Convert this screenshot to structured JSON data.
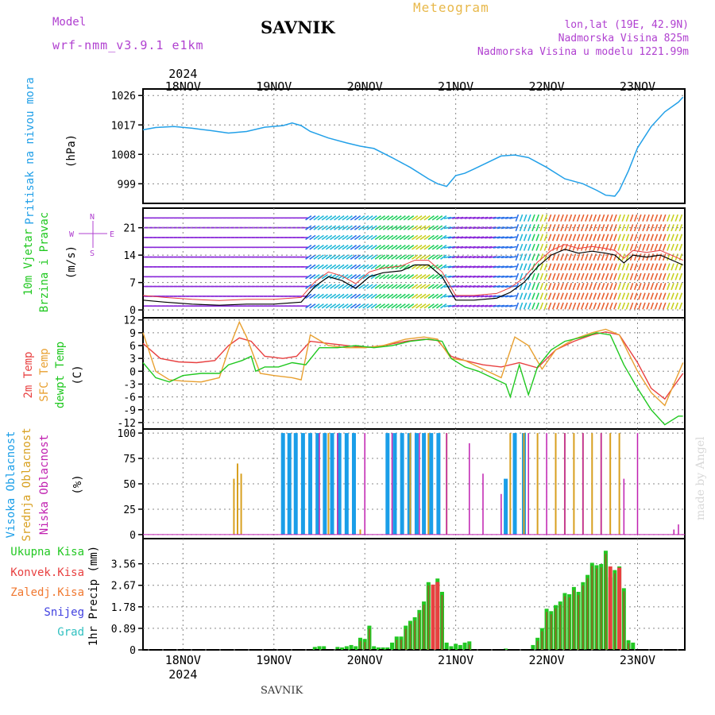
{
  "header": {
    "model_label": "Model",
    "model_value": "wrf-nmm_v3.9.1 e1km",
    "station": "SAVNIK",
    "meteogram": "Meteogram",
    "lonlat": "lon,lat (19E, 42.9N)",
    "altitude": "Nadmorska Visina 825m",
    "model_altitude": "Nadmorska Visina u modelu 1221.99m",
    "footer_station": "SAVNIK",
    "credit": "made by Angel"
  },
  "colors": {
    "pressure": "#22a0e8",
    "temp2m": "#e84040",
    "sfc_temp": "#e8a030",
    "dewpoint": "#20c820",
    "high_cloud": "#1a9ee8",
    "mid_cloud": "#d8a020",
    "low_cloud": "#c020b0",
    "total_precip": "#22c822",
    "conv_precip": "#e84040",
    "freezing_precip": "#f07830",
    "snow": "#4040e0",
    "hail": "#30c0c0",
    "label_purple": "#b040d0"
  },
  "chart_data": [
    {
      "type": "line",
      "panel": "pressure",
      "ylabel_side": "Pritisak na nivou mora",
      "unit": "(hPa)",
      "yticks": [
        999,
        1008,
        1017,
        1026
      ],
      "ylim": [
        993,
        1028
      ],
      "time_labels_top": [
        "18NOV",
        "19NOV",
        "20NOV",
        "21NOV",
        "22NOV",
        "23NOV"
      ],
      "year_label": "2024",
      "x": [
        17.56,
        17.7,
        17.9,
        18.1,
        18.3,
        18.5,
        18.7,
        18.9,
        19.1,
        19.2,
        19.3,
        19.4,
        19.6,
        19.8,
        19.95,
        20.1,
        20.3,
        20.5,
        20.7,
        20.8,
        20.9,
        21.0,
        21.1,
        21.2,
        21.35,
        21.5,
        21.65,
        21.8,
        22.0,
        22.2,
        22.4,
        22.55,
        22.65,
        22.75,
        22.8,
        22.9,
        23.0,
        23.15,
        23.3,
        23.45,
        23.5
      ],
      "y": [
        1015.5,
        1016.2,
        1016.5,
        1016.0,
        1015.3,
        1014.5,
        1015.0,
        1016.3,
        1016.8,
        1017.6,
        1016.8,
        1015.0,
        1013.0,
        1011.5,
        1010.5,
        1009.8,
        1007.0,
        1004.0,
        1000.5,
        999.0,
        998.2,
        1001.5,
        1002.2,
        1003.5,
        1005.5,
        1007.5,
        1007.8,
        1007.0,
        1004.0,
        1000.5,
        999.0,
        997.0,
        995.5,
        995.2,
        997.0,
        1003.0,
        1010.0,
        1016.5,
        1021.0,
        1024.0,
        1025.5
      ]
    },
    {
      "type": "line",
      "panel": "wind",
      "ylabel_side": [
        "10m Vjetar",
        "Brzina i Pravac"
      ],
      "unit": "(m/s)",
      "compass": {
        "n": "N",
        "s": "S",
        "e": "E",
        "w": "W"
      },
      "yticks": [
        0,
        7,
        14,
        21
      ],
      "ylim": [
        -2,
        26
      ],
      "x": [
        17.56,
        17.8,
        18.1,
        18.4,
        18.7,
        19.0,
        19.3,
        19.45,
        19.6,
        19.75,
        19.9,
        20.05,
        20.2,
        20.4,
        20.55,
        20.7,
        20.85,
        21.0,
        21.2,
        21.45,
        21.6,
        21.75,
        21.9,
        22.05,
        22.2,
        22.35,
        22.5,
        22.65,
        22.75,
        22.85,
        22.95,
        23.1,
        23.25,
        23.4,
        23.5
      ],
      "y": [
        2.5,
        2.0,
        1.5,
        1.2,
        1.5,
        1.5,
        2.0,
        6.0,
        8.5,
        7.5,
        5.5,
        8.5,
        9.5,
        10.0,
        11.5,
        11.5,
        8.5,
        2.5,
        2.5,
        3.0,
        4.5,
        7.0,
        11.0,
        14.0,
        15.5,
        14.5,
        15.0,
        14.5,
        14.0,
        12.0,
        14.0,
        13.5,
        14.0,
        12.5,
        11.5
      ]
    },
    {
      "type": "line",
      "panel": "temperature",
      "ylabel_side": [
        "2m Temp",
        "SFC Temp",
        "dewpt Temp"
      ],
      "unit": "(C)",
      "yticks": [
        -12,
        -9,
        -6,
        -3,
        0,
        3,
        6,
        9,
        12
      ],
      "ylim": [
        -13.5,
        12.5
      ],
      "series": [
        {
          "name": "2m Temp",
          "x": [
            17.56,
            17.75,
            17.95,
            18.15,
            18.35,
            18.5,
            18.62,
            18.75,
            18.9,
            19.1,
            19.25,
            19.4,
            19.6,
            19.8,
            20.0,
            20.2,
            20.45,
            20.65,
            20.8,
            20.95,
            21.1,
            21.3,
            21.5,
            21.7,
            21.9,
            22.1,
            22.3,
            22.5,
            22.65,
            22.8,
            23.0,
            23.15,
            23.3,
            23.5
          ],
          "y": [
            6.5,
            3.0,
            2.2,
            2.0,
            2.5,
            6.0,
            7.8,
            7.0,
            3.5,
            3.0,
            3.5,
            7.0,
            6.5,
            6.0,
            5.5,
            6.0,
            7.0,
            7.5,
            7.2,
            3.5,
            2.5,
            1.5,
            1.0,
            2.0,
            0.8,
            5.0,
            7.0,
            8.5,
            9.2,
            8.5,
            2.0,
            -4.0,
            -6.5,
            -0.5
          ]
        },
        {
          "name": "SFC Temp",
          "x": [
            17.56,
            17.7,
            17.85,
            18.0,
            18.2,
            18.4,
            18.5,
            18.62,
            18.7,
            18.85,
            19.0,
            19.2,
            19.3,
            19.4,
            19.6,
            19.8,
            20.0,
            20.2,
            20.45,
            20.65,
            20.8,
            20.95,
            21.1,
            21.3,
            21.5,
            21.65,
            21.8,
            21.95,
            22.1,
            22.3,
            22.5,
            22.65,
            22.8,
            23.0,
            23.15,
            23.3,
            23.5
          ],
          "y": [
            9.0,
            0.0,
            -2.0,
            -2.3,
            -2.5,
            -1.5,
            5.0,
            11.5,
            8.0,
            -0.5,
            -1.0,
            -1.5,
            -2.0,
            8.5,
            6.0,
            5.5,
            5.5,
            6.0,
            7.5,
            8.0,
            7.5,
            3.0,
            2.5,
            0.5,
            -1.5,
            8.0,
            6.0,
            0.5,
            5.0,
            7.5,
            9.0,
            9.8,
            8.5,
            0.0,
            -5.0,
            -8.0,
            2.0
          ]
        },
        {
          "name": "dewpt Temp",
          "x": [
            17.56,
            17.7,
            17.85,
            18.0,
            18.2,
            18.4,
            18.5,
            18.65,
            18.75,
            18.8,
            18.9,
            19.05,
            19.2,
            19.35,
            19.5,
            19.7,
            19.9,
            20.1,
            20.3,
            20.5,
            20.7,
            20.85,
            20.95,
            21.1,
            21.25,
            21.4,
            21.55,
            21.6,
            21.7,
            21.8,
            21.9,
            22.05,
            22.2,
            22.4,
            22.55,
            22.7,
            22.85,
            23.0,
            23.15,
            23.3,
            23.45,
            23.5
          ],
          "y": [
            2.0,
            -1.5,
            -2.5,
            -1.0,
            -0.5,
            -0.5,
            1.5,
            2.5,
            3.5,
            0.0,
            1.0,
            1.0,
            2.0,
            1.5,
            5.5,
            5.5,
            6.0,
            5.5,
            6.0,
            7.0,
            7.5,
            7.0,
            3.0,
            1.0,
            0.0,
            -1.5,
            -3.0,
            -6.0,
            1.5,
            -5.5,
            1.0,
            5.0,
            7.0,
            8.0,
            9.0,
            8.5,
            1.5,
            -4.0,
            -9.0,
            -12.5,
            -10.5,
            -10.5
          ]
        }
      ]
    },
    {
      "type": "bar",
      "panel": "clouds",
      "ylabel_side": [
        "Visoka Oblacnost",
        "Srednja Oblacnost",
        "Niska Oblacnost"
      ],
      "unit": "(%)",
      "yticks": [
        0,
        25,
        50,
        75,
        100
      ],
      "ylim": [
        -4,
        104
      ],
      "series": [
        {
          "name": "Visoka Oblacnost",
          "x": [
            19.1,
            19.17,
            19.24,
            19.32,
            19.4,
            19.48,
            19.56,
            19.64,
            19.72,
            19.8,
            19.88,
            20.25,
            20.33,
            20.41,
            20.49,
            20.57,
            20.65,
            20.73,
            20.81,
            21.55,
            21.65,
            21.75
          ],
          "y": [
            100,
            100,
            100,
            100,
            100,
            100,
            100,
            100,
            100,
            100,
            100,
            100,
            100,
            100,
            100,
            100,
            100,
            100,
            100,
            55,
            100,
            100
          ]
        },
        {
          "name": "Srednja Oblacnost",
          "x": [
            18.56,
            18.6,
            18.64,
            19.6,
            19.95,
            20.5,
            20.7,
            20.9,
            21.6,
            21.75,
            21.9,
            22.1,
            22.2,
            22.3,
            22.4,
            22.5,
            22.6,
            22.7,
            22.8
          ],
          "y": [
            55,
            70,
            60,
            100,
            5,
            100,
            100,
            100,
            100,
            100,
            100,
            100,
            100,
            100,
            100,
            100,
            100,
            100,
            100
          ]
        },
        {
          "name": "Niska Oblacnost",
          "x": [
            19.5,
            19.7,
            20.0,
            20.3,
            20.6,
            20.9,
            21.15,
            21.3,
            21.5,
            21.8,
            22.0,
            22.2,
            22.4,
            22.6,
            22.85,
            23.0,
            23.4,
            23.45
          ],
          "y": [
            100,
            100,
            100,
            100,
            100,
            100,
            90,
            60,
            40,
            100,
            100,
            100,
            100,
            100,
            55,
            100,
            5,
            10
          ]
        }
      ]
    },
    {
      "type": "bar",
      "panel": "precipitation",
      "ylabel_side": "1hr Precip (mm)",
      "legend": [
        "Ukupna Kisa",
        "Konvek.Kisa",
        "Zaledj.Kisa",
        "Snijeg",
        "Grad"
      ],
      "yticks": [
        0,
        0.89,
        1.78,
        2.67,
        3.56
      ],
      "ylim": [
        0,
        4.6
      ],
      "time_labels_bottom": [
        "18NOV",
        "19NOV",
        "20NOV",
        "21NOV",
        "22NOV",
        "23NOV"
      ],
      "year_label": "2024",
      "series": [
        {
          "name": "Ukupna Kisa",
          "x": [
            19.45,
            19.5,
            19.55,
            19.7,
            19.75,
            19.8,
            19.85,
            19.9,
            19.95,
            20.0,
            20.05,
            20.1,
            20.15,
            20.2,
            20.25,
            20.3,
            20.35,
            20.4,
            20.45,
            20.5,
            20.55,
            20.6,
            20.65,
            20.7,
            20.75,
            20.8,
            20.85,
            20.9,
            20.95,
            21.0,
            21.05,
            21.1,
            21.15,
            21.55,
            21.85,
            21.9,
            21.95,
            22.0,
            22.05,
            22.1,
            22.15,
            22.2,
            22.25,
            22.3,
            22.35,
            22.4,
            22.45,
            22.5,
            22.55,
            22.6,
            22.65,
            22.7,
            22.75,
            22.8,
            22.85,
            22.9,
            22.95
          ],
          "y": [
            0.12,
            0.15,
            0.15,
            0.12,
            0.1,
            0.15,
            0.2,
            0.15,
            0.5,
            0.45,
            1.0,
            0.15,
            0.1,
            0.1,
            0.1,
            0.3,
            0.55,
            0.55,
            1.0,
            1.2,
            1.35,
            1.65,
            2.0,
            2.8,
            2.6,
            2.95,
            2.4,
            0.3,
            0.15,
            0.25,
            0.2,
            0.3,
            0.35,
            0.05,
            0.2,
            0.5,
            0.9,
            1.7,
            1.6,
            1.85,
            2.0,
            2.35,
            2.3,
            2.6,
            2.4,
            2.8,
            3.1,
            3.6,
            3.5,
            3.55,
            4.1,
            3.0,
            3.3,
            3.45,
            2.55,
            0.4,
            0.3
          ]
        },
        {
          "name": "Konvek.Kisa",
          "x": [
            20.75,
            20.8,
            22.7,
            22.8
          ],
          "y": [
            2.7,
            2.8,
            3.45,
            3.4
          ]
        }
      ]
    }
  ]
}
